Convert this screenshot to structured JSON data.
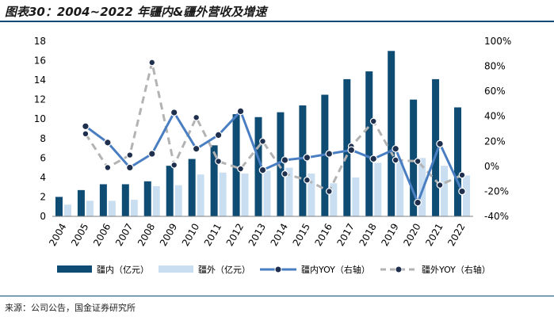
{
  "title": "图表30：2004~2022 年疆内&疆外营收及增速",
  "source": "来源：公司公告，国金证券研究所",
  "colors": {
    "inner_bar": "#0e4c74",
    "outer_bar": "#c9def1",
    "inner_line": "#4a7ec2",
    "outer_line": "#b3b3b3",
    "marker": "#1f2f4e",
    "rule": "#0b4a73"
  },
  "chart_data": {
    "type": "bar",
    "categories": [
      "2004",
      "2005",
      "2006",
      "2007",
      "2008",
      "2009",
      "2010",
      "2011",
      "2012",
      "2013",
      "2014",
      "2015",
      "2016",
      "2017",
      "2018",
      "2019",
      "2020",
      "2021",
      "2022"
    ],
    "left_axis": {
      "min": 0,
      "max": 18,
      "ticks": [
        "0",
        "2",
        "4",
        "6",
        "8",
        "10",
        "12",
        "14",
        "16",
        "18"
      ]
    },
    "right_axis": {
      "min": -40,
      "max": 100,
      "ticks": [
        "-40%",
        "-20%",
        "0%",
        "20%",
        "40%",
        "60%",
        "80%",
        "100%"
      ]
    },
    "legend_placement": "bottom",
    "series": [
      {
        "name": "疆内（亿元）",
        "kind": "bar",
        "axis": "left",
        "values": [
          2.0,
          2.7,
          3.3,
          3.3,
          3.6,
          5.2,
          5.9,
          7.3,
          10.5,
          10.2,
          10.7,
          11.4,
          12.5,
          14.1,
          14.9,
          17.0,
          12.0,
          14.1,
          11.2
        ]
      },
      {
        "name": "疆外（亿元）",
        "kind": "bar",
        "axis": "left",
        "values": [
          1.2,
          1.6,
          1.6,
          1.7,
          3.1,
          3.2,
          4.3,
          4.5,
          4.4,
          4.7,
          5.0,
          4.4,
          3.4,
          4.0,
          5.5,
          5.6,
          6.0,
          5.2,
          4.2
        ]
      },
      {
        "name": "疆内YOY（右轴）",
        "kind": "line",
        "axis": "right",
        "values": [
          null,
          32,
          19,
          -1,
          10,
          43,
          14,
          25,
          44,
          -3,
          5,
          7,
          10,
          13,
          6,
          14,
          -29,
          18,
          -20
        ]
      },
      {
        "name": "疆外YOY（右轴）",
        "kind": "line",
        "axis": "right",
        "values": [
          null,
          26,
          -1,
          9,
          83,
          1,
          39,
          4,
          -2,
          20,
          -6,
          -11,
          -20,
          16,
          36,
          5,
          4,
          -15,
          -7
        ]
      }
    ]
  }
}
